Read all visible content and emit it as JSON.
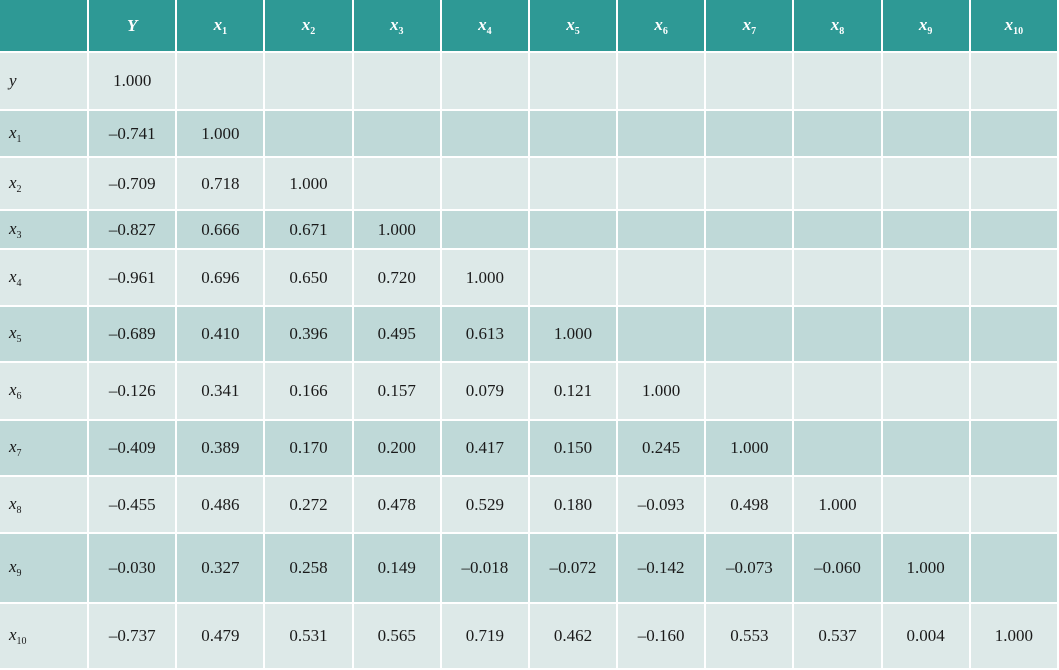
{
  "chart_data": {
    "type": "table",
    "columns": [
      {
        "label": "Y",
        "sub": ""
      },
      {
        "label": "x",
        "sub": "1"
      },
      {
        "label": "x",
        "sub": "2"
      },
      {
        "label": "x",
        "sub": "3"
      },
      {
        "label": "x",
        "sub": "4"
      },
      {
        "label": "x",
        "sub": "5"
      },
      {
        "label": "x",
        "sub": "6"
      },
      {
        "label": "x",
        "sub": "7"
      },
      {
        "label": "x",
        "sub": "8"
      },
      {
        "label": "x",
        "sub": "9"
      },
      {
        "label": "x",
        "sub": "10"
      }
    ],
    "rows": [
      {
        "label": "y",
        "sub": "",
        "values": [
          "1.000"
        ]
      },
      {
        "label": "x",
        "sub": "1",
        "values": [
          "–0.741",
          "1.000"
        ]
      },
      {
        "label": "x",
        "sub": "2",
        "values": [
          "–0.709",
          "0.718",
          "1.000"
        ]
      },
      {
        "label": "x",
        "sub": "3",
        "values": [
          "–0.827",
          "0.666",
          "0.671",
          "1.000"
        ]
      },
      {
        "label": "x",
        "sub": "4",
        "values": [
          "–0.961",
          "0.696",
          "0.650",
          "0.720",
          "1.000"
        ]
      },
      {
        "label": "x",
        "sub": "5",
        "values": [
          "–0.689",
          "0.410",
          "0.396",
          "0.495",
          "0.613",
          "1.000"
        ]
      },
      {
        "label": "x",
        "sub": "6",
        "values": [
          "–0.126",
          "0.341",
          "0.166",
          "0.157",
          "0.079",
          "0.121",
          "1.000"
        ]
      },
      {
        "label": "x",
        "sub": "7",
        "values": [
          "–0.409",
          "0.389",
          "0.170",
          "0.200",
          "0.417",
          "0.150",
          "0.245",
          "1.000"
        ]
      },
      {
        "label": "x",
        "sub": "8",
        "values": [
          "–0.455",
          "0.486",
          "0.272",
          "0.478",
          "0.529",
          "0.180",
          "–0.093",
          "0.498",
          "1.000"
        ]
      },
      {
        "label": "x",
        "sub": "9",
        "values": [
          "–0.030",
          "0.327",
          "0.258",
          "0.149",
          "–0.018",
          "–0.072",
          "–0.142",
          "–0.073",
          "–0.060",
          "1.000"
        ]
      },
      {
        "label": "x",
        "sub": "10",
        "values": [
          "–0.737",
          "0.479",
          "0.531",
          "0.565",
          "0.719",
          "0.462",
          "–0.160",
          "0.553",
          "0.537",
          "0.004",
          "1.000"
        ]
      }
    ]
  },
  "colors": {
    "header_bg": "#2e9995",
    "row_light": "#dde9e8",
    "row_dark": "#bfd9d8"
  }
}
